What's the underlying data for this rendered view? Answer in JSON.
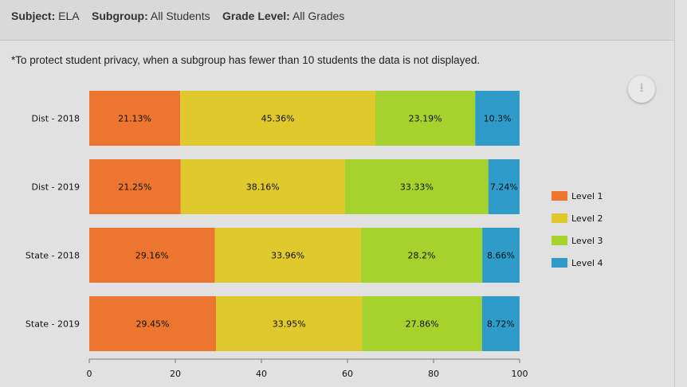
{
  "filters": {
    "subject_label": "Subject:",
    "subject": "ELA",
    "subgroup_label": "Subgroup:",
    "subgroup": "All Students",
    "grade_label": "Grade Level:",
    "grade": "All Grades"
  },
  "note": "*To protect student privacy, when a subgroup has fewer than 10 students the data is not displayed.",
  "download_icon": "download-icon",
  "chart_data": {
    "type": "bar",
    "orientation": "horizontal",
    "stacked": true,
    "categories": [
      "Dist - 2018",
      "Dist - 2019",
      "State - 2018",
      "State - 2019"
    ],
    "series": [
      {
        "name": "Level 1",
        "color": "#ec7630",
        "values": [
          21.13,
          21.25,
          29.16,
          29.45
        ],
        "labels": [
          "21.13%",
          "21.25%",
          "29.16%",
          "29.45%"
        ]
      },
      {
        "name": "Level 2",
        "color": "#dfc92c",
        "values": [
          45.36,
          38.16,
          33.96,
          33.95
        ],
        "labels": [
          "45.36%",
          "38.16%",
          "33.96%",
          "33.95%"
        ]
      },
      {
        "name": "Level 3",
        "color": "#a6d22e",
        "values": [
          23.19,
          33.33,
          28.2,
          27.86
        ],
        "labels": [
          "23.19%",
          "33.33%",
          "28.2%",
          "27.86%"
        ]
      },
      {
        "name": "Level 4",
        "color": "#2e9bc8",
        "values": [
          10.3,
          7.24,
          8.66,
          8.72
        ],
        "labels": [
          "10.3%",
          "7.24%",
          "8.66%",
          "8.72%"
        ]
      }
    ],
    "xlim": [
      0,
      100
    ],
    "xticks": [
      "0",
      "20",
      "40",
      "60",
      "80",
      "100"
    ],
    "legend": "right",
    "grid": false
  }
}
